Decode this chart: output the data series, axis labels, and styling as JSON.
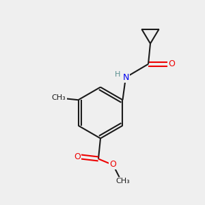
{
  "bg_color": "#efefef",
  "bond_color": "#1a1a1a",
  "bond_width": 1.5,
  "atom_colors": {
    "C": "#1a1a1a",
    "H": "#5a9090",
    "N": "#0000ee",
    "O": "#ee0000"
  },
  "figsize": [
    3.0,
    3.0
  ],
  "dpi": 100
}
